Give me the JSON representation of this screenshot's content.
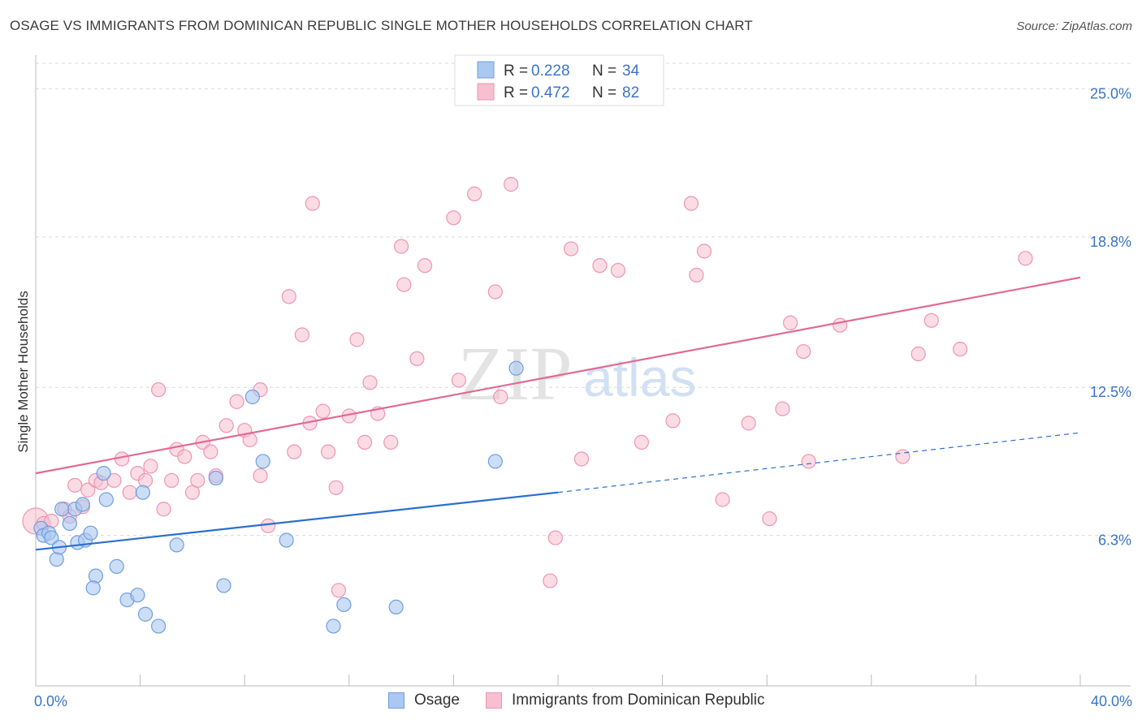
{
  "title": "OSAGE VS IMMIGRANTS FROM DOMINICAN REPUBLIC SINGLE MOTHER HOUSEHOLDS CORRELATION CHART",
  "source": "Source: ZipAtlas.com",
  "watermark": {
    "zip": "ZIP",
    "atlas": "atlas"
  },
  "colors": {
    "osage_fill": "#aac8f0",
    "osage_stroke": "#6f9ee0",
    "osage_line": "#2a6fd0",
    "dominican_fill": "#f7bfd0",
    "dominican_stroke": "#ee94b2",
    "dominican_line": "#e06a94",
    "axis_text": "#3a74c7",
    "grid": "#d9d9d9"
  },
  "chart_data": {
    "type": "scatter",
    "title": "OSAGE VS IMMIGRANTS FROM DOMINICAN REPUBLIC SINGLE MOTHER HOUSEHOLDS CORRELATION CHART",
    "xlabel": "",
    "ylabel": "Single Mother Households",
    "xlim": [
      0,
      40
    ],
    "ylim": [
      0,
      26
    ],
    "x_tick_labels": [
      "0.0%",
      "40.0%"
    ],
    "y_ticks": [
      {
        "value": 6.3,
        "label": "6.3%"
      },
      {
        "value": 12.5,
        "label": "12.5%"
      },
      {
        "value": 18.8,
        "label": "18.8%"
      },
      {
        "value": 25.0,
        "label": "25.0%"
      }
    ],
    "legend_stats": [
      {
        "r_label": "R =",
        "r_value": "0.228",
        "n_label": "N =",
        "n_value": "34"
      },
      {
        "r_label": "R =",
        "r_value": "0.472",
        "n_label": "N =",
        "n_value": "82"
      }
    ],
    "series": [
      {
        "name": "Osage",
        "trend": {
          "x0": 0,
          "y0": 5.7,
          "x1": 20,
          "y1": 8.1,
          "dashed_to_x": 40,
          "dashed_to_y": 10.6
        },
        "points": [
          [
            0.2,
            6.6
          ],
          [
            0.3,
            6.3
          ],
          [
            0.5,
            6.4
          ],
          [
            0.6,
            6.2
          ],
          [
            0.8,
            5.3
          ],
          [
            0.9,
            5.8
          ],
          [
            1.0,
            7.4
          ],
          [
            1.3,
            6.8
          ],
          [
            1.5,
            7.4
          ],
          [
            1.6,
            6.0
          ],
          [
            1.8,
            7.6
          ],
          [
            1.9,
            6.1
          ],
          [
            2.1,
            6.4
          ],
          [
            2.3,
            4.6
          ],
          [
            2.2,
            4.1
          ],
          [
            2.6,
            8.9
          ],
          [
            2.7,
            7.8
          ],
          [
            3.1,
            5.0
          ],
          [
            3.5,
            3.6
          ],
          [
            3.9,
            3.8
          ],
          [
            4.2,
            3.0
          ],
          [
            4.1,
            8.1
          ],
          [
            4.7,
            2.5
          ],
          [
            5.4,
            5.9
          ],
          [
            6.9,
            8.7
          ],
          [
            7.2,
            4.2
          ],
          [
            8.3,
            12.1
          ],
          [
            8.7,
            9.4
          ],
          [
            9.6,
            6.1
          ],
          [
            11.4,
            2.5
          ],
          [
            11.8,
            3.4
          ],
          [
            13.8,
            3.3
          ],
          [
            17.6,
            9.4
          ],
          [
            18.4,
            13.3
          ]
        ]
      },
      {
        "name": "Immigrants from Dominican Republic",
        "trend": {
          "x0": 0,
          "y0": 8.9,
          "x1": 40,
          "y1": 17.1
        },
        "points": [
          [
            0.0,
            6.9
          ],
          [
            0.3,
            6.8
          ],
          [
            0.6,
            6.9
          ],
          [
            1.1,
            7.4
          ],
          [
            1.3,
            7.1
          ],
          [
            1.5,
            8.4
          ],
          [
            1.8,
            7.5
          ],
          [
            2.0,
            8.2
          ],
          [
            2.3,
            8.6
          ],
          [
            2.5,
            8.5
          ],
          [
            3.0,
            8.6
          ],
          [
            3.3,
            9.5
          ],
          [
            3.6,
            8.1
          ],
          [
            3.9,
            8.9
          ],
          [
            4.2,
            8.6
          ],
          [
            4.4,
            9.2
          ],
          [
            4.7,
            12.4
          ],
          [
            4.9,
            7.4
          ],
          [
            5.2,
            8.6
          ],
          [
            5.4,
            9.9
          ],
          [
            5.7,
            9.6
          ],
          [
            6.0,
            8.1
          ],
          [
            6.2,
            8.6
          ],
          [
            6.4,
            10.2
          ],
          [
            6.7,
            9.8
          ],
          [
            6.9,
            8.8
          ],
          [
            7.3,
            10.9
          ],
          [
            7.7,
            11.9
          ],
          [
            8.0,
            10.7
          ],
          [
            8.2,
            10.3
          ],
          [
            8.6,
            8.8
          ],
          [
            8.6,
            12.4
          ],
          [
            8.9,
            6.7
          ],
          [
            9.7,
            16.3
          ],
          [
            9.9,
            9.8
          ],
          [
            10.2,
            14.7
          ],
          [
            10.5,
            11.0
          ],
          [
            10.6,
            20.2
          ],
          [
            11.0,
            11.5
          ],
          [
            11.2,
            9.8
          ],
          [
            11.5,
            8.3
          ],
          [
            11.6,
            4.0
          ],
          [
            12.0,
            11.3
          ],
          [
            12.3,
            14.5
          ],
          [
            12.6,
            10.2
          ],
          [
            12.8,
            12.7
          ],
          [
            13.1,
            11.4
          ],
          [
            13.6,
            10.2
          ],
          [
            14.0,
            18.4
          ],
          [
            14.1,
            16.8
          ],
          [
            14.6,
            13.7
          ],
          [
            14.9,
            17.6
          ],
          [
            16.0,
            19.6
          ],
          [
            16.2,
            12.8
          ],
          [
            16.8,
            20.6
          ],
          [
            17.8,
            12.1
          ],
          [
            17.6,
            16.5
          ],
          [
            19.7,
            4.4
          ],
          [
            19.9,
            6.2
          ],
          [
            20.5,
            18.3
          ],
          [
            20.9,
            9.5
          ],
          [
            21.6,
            17.6
          ],
          [
            22.3,
            17.4
          ],
          [
            23.2,
            10.2
          ],
          [
            25.1,
            20.2
          ],
          [
            25.3,
            17.2
          ],
          [
            25.6,
            18.2
          ],
          [
            26.3,
            7.8
          ],
          [
            27.3,
            11.0
          ],
          [
            28.1,
            7.0
          ],
          [
            28.6,
            11.6
          ],
          [
            28.9,
            15.2
          ],
          [
            29.4,
            14.0
          ],
          [
            30.8,
            15.1
          ],
          [
            33.2,
            9.6
          ],
          [
            33.8,
            13.9
          ],
          [
            34.3,
            15.3
          ],
          [
            35.4,
            14.1
          ],
          [
            37.9,
            17.9
          ],
          [
            24.4,
            11.1
          ],
          [
            18.2,
            21.0
          ],
          [
            29.6,
            9.4
          ]
        ]
      }
    ]
  },
  "bottom_legend": [
    {
      "label": "Osage"
    },
    {
      "label": "Immigrants from Dominican Republic"
    }
  ]
}
